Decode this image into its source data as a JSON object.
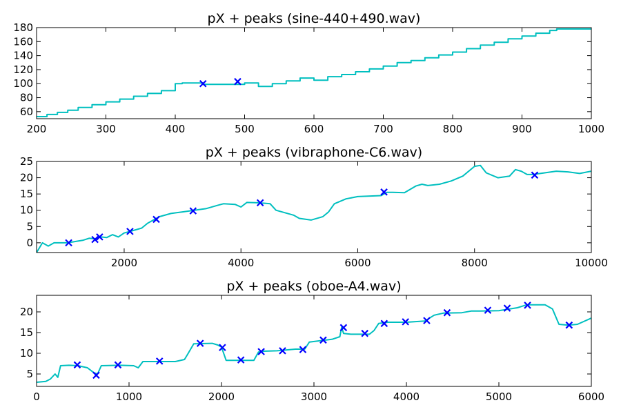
{
  "colors": {
    "series": "#00bfbf",
    "peaks": "#0000ff"
  },
  "chart_data": [
    {
      "type": "line",
      "title": "pX + peaks (sine-440+490.wav)",
      "xlim": [
        200,
        1000
      ],
      "ylim": [
        50,
        180
      ],
      "xticks": [
        200,
        300,
        400,
        500,
        600,
        700,
        800,
        900,
        1000
      ],
      "yticks": [
        60,
        80,
        100,
        120,
        140,
        160,
        180
      ],
      "series": [
        {
          "style": "step",
          "x": [
            200,
            215,
            230,
            245,
            260,
            280,
            300,
            320,
            340,
            360,
            380,
            400,
            410,
            440,
            500,
            520,
            540,
            560,
            580,
            600,
            620,
            640,
            660,
            680,
            700,
            720,
            740,
            760,
            780,
            800,
            820,
            840,
            860,
            880,
            900,
            920,
            940,
            950
          ],
          "y": [
            53,
            56,
            59,
            62,
            66,
            70,
            74,
            78,
            82,
            86,
            90,
            100,
            101,
            99,
            101,
            96,
            100,
            104,
            108,
            105,
            110,
            113,
            117,
            121,
            125,
            130,
            133,
            137,
            141,
            145,
            150,
            155,
            159,
            164,
            168,
            172,
            176,
            178
          ]
        },
        {
          "style": "marker",
          "name": "peaks",
          "x": [
            440,
            490
          ],
          "y": [
            100,
            103
          ]
        }
      ]
    },
    {
      "type": "line",
      "title": "pX + peaks (vibraphone-C6.wav)",
      "xlim": [
        500,
        10000
      ],
      "ylim": [
        -3,
        25
      ],
      "xticks": [
        2000,
        4000,
        6000,
        8000,
        10000
      ],
      "yticks": [
        0,
        5,
        10,
        15,
        20,
        25
      ],
      "series": [
        {
          "style": "line",
          "x": [
            500,
            600,
            700,
            800,
            1000,
            1100,
            1300,
            1400,
            1500,
            1600,
            1700,
            1800,
            1900,
            2000,
            2100,
            2200,
            2300,
            2400,
            2500,
            2600,
            2800,
            3000,
            3200,
            3400,
            3600,
            3700,
            3900,
            4000,
            4100,
            4300,
            4500,
            4600,
            4700,
            4900,
            5000,
            5200,
            5400,
            5500,
            5600,
            5800,
            6000,
            6400,
            6500,
            6600,
            6800,
            7000,
            7100,
            7200,
            7400,
            7600,
            7800,
            8000,
            8100,
            8200,
            8400,
            8600,
            8700,
            8800,
            8900,
            9000,
            9200,
            9400,
            9600,
            9800,
            10000
          ],
          "y": [
            -3,
            0,
            -1,
            0,
            0,
            0.2,
            0.8,
            1.4,
            1.2,
            1.8,
            1.6,
            2.5,
            1.8,
            3,
            3.5,
            4,
            4.5,
            6,
            7,
            8,
            9,
            9.5,
            10,
            10.5,
            11.5,
            12,
            11.8,
            11,
            12.4,
            12.3,
            12,
            10,
            9.5,
            8.5,
            7.5,
            7,
            8,
            9.5,
            12,
            13.5,
            14.2,
            14.5,
            15.5,
            15.5,
            15.4,
            17.5,
            18,
            17.6,
            18,
            19,
            20.5,
            23.5,
            23.8,
            21.5,
            20,
            20.5,
            22.5,
            22,
            21,
            21,
            21.5,
            22,
            21.8,
            21.3,
            22
          ]
        },
        {
          "style": "marker",
          "name": "peaks",
          "x": [
            1050,
            1500,
            1580,
            2100,
            2550,
            3180,
            4330,
            6450,
            9030
          ],
          "y": [
            0,
            1,
            1.8,
            3.5,
            7.2,
            9.8,
            12.3,
            15.6,
            20.8
          ]
        }
      ]
    },
    {
      "type": "line",
      "title": "pX + peaks (oboe-A4.wav)",
      "xlim": [
        0,
        6000
      ],
      "ylim": [
        2,
        24
      ],
      "xticks": [
        0,
        1000,
        2000,
        3000,
        4000,
        5000,
        6000
      ],
      "yticks": [
        5,
        10,
        15,
        20
      ],
      "series": [
        {
          "style": "line",
          "x": [
            0,
            100,
            150,
            200,
            230,
            260,
            350,
            450,
            550,
            620,
            660,
            700,
            900,
            1050,
            1100,
            1150,
            1300,
            1500,
            1600,
            1640,
            1700,
            1900,
            1960,
            2000,
            2050,
            2100,
            2200,
            2350,
            2400,
            2450,
            2600,
            2800,
            2900,
            2950,
            3200,
            3280,
            3300,
            3320,
            3400,
            3600,
            3650,
            3700,
            3800,
            4000,
            4200,
            4300,
            4400,
            4600,
            4700,
            4800,
            5000,
            5200,
            5300,
            5500,
            5580,
            5650,
            5750,
            5850,
            6000
          ],
          "y": [
            3,
            3.2,
            3.8,
            5,
            4.2,
            7,
            7.1,
            7,
            6.5,
            5.3,
            5,
            7,
            7.1,
            7,
            6.5,
            8,
            8,
            8,
            8.5,
            10,
            12.3,
            12.4,
            12,
            11.5,
            8.3,
            8.3,
            8.3,
            8.3,
            10.3,
            10.5,
            10.6,
            11,
            11,
            12.7,
            13.4,
            14,
            16.3,
            14.8,
            14.6,
            14.6,
            15.5,
            17.2,
            17.5,
            17.5,
            17.8,
            19.2,
            19.7,
            19.8,
            20.2,
            20.2,
            20.3,
            21,
            21.7,
            21.7,
            20.7,
            17,
            16.8,
            17,
            18.5
          ]
        },
        {
          "style": "marker",
          "name": "peaks",
          "x": [
            440,
            645,
            880,
            1330,
            1770,
            2010,
            2210,
            2430,
            2660,
            2880,
            3100,
            3320,
            3550,
            3760,
            3990,
            4220,
            4440,
            4880,
            5090,
            5310,
            5760
          ],
          "y": [
            7.2,
            4.7,
            7.2,
            8.1,
            12.4,
            11.4,
            8.4,
            10.4,
            10.6,
            10.9,
            13.2,
            16.2,
            14.8,
            17.2,
            17.6,
            17.9,
            19.8,
            20.4,
            20.9,
            21.6,
            16.8
          ]
        }
      ]
    }
  ]
}
